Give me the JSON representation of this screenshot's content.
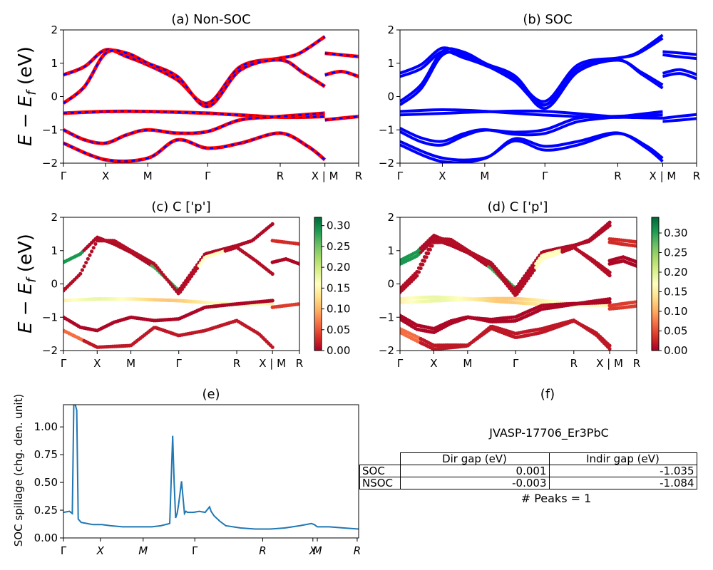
{
  "chart_data": [
    {
      "type": "line",
      "title": "(a) Non-SOC",
      "ylabel": "E − E_f (eV)",
      "ylim": [
        -2,
        2
      ],
      "yticks": [
        "2",
        "1",
        "0",
        "−1",
        "−2"
      ],
      "xtick_labels": [
        "Γ",
        "X",
        "M",
        "Γ",
        "R",
        "X | M",
        "R"
      ],
      "kpath": [
        0,
        0.5,
        1.0,
        1.71,
        2.57,
        3.1,
        3.5
      ],
      "legend": "none",
      "series": [
        {
          "color": "#ff0000",
          "style": "solid",
          "bands": [
            [
              [
                0,
                0.65
              ],
              [
                0.25,
                0.9
              ],
              [
                0.5,
                1.4
              ],
              [
                0.75,
                1.2
              ],
              [
                1.0,
                0.95
              ],
              [
                1.35,
                0.5
              ],
              [
                1.71,
                -0.2
              ],
              [
                2.1,
                0.9
              ],
              [
                2.57,
                1.15
              ],
              [
                2.8,
                1.3
              ],
              [
                3.1,
                1.8
              ]
            ],
            [
              [
                0,
                -0.2
              ],
              [
                0.25,
                0.3
              ],
              [
                0.5,
                1.3
              ],
              [
                0.75,
                1.3
              ],
              [
                1.0,
                1.0
              ],
              [
                1.35,
                0.6
              ],
              [
                1.71,
                -0.3
              ],
              [
                2.1,
                0.8
              ],
              [
                2.57,
                1.1
              ],
              [
                2.85,
                0.7
              ],
              [
                3.1,
                0.3
              ]
            ],
            [
              [
                0,
                -0.5
              ],
              [
                0.5,
                -0.45
              ],
              [
                1.0,
                -0.45
              ],
              [
                1.71,
                -0.5
              ],
              [
                2.57,
                -0.62
              ],
              [
                3.1,
                -0.6
              ]
            ],
            [
              [
                0,
                -1.0
              ],
              [
                0.25,
                -1.3
              ],
              [
                0.5,
                -1.4
              ],
              [
                0.75,
                -1.15
              ],
              [
                1.0,
                -1.0
              ],
              [
                1.35,
                -1.1
              ],
              [
                1.71,
                -1.05
              ],
              [
                2.1,
                -0.7
              ],
              [
                2.57,
                -0.6
              ],
              [
                3.1,
                -0.5
              ]
            ],
            [
              [
                0,
                -1.4
              ],
              [
                0.5,
                -1.9
              ],
              [
                1.0,
                -1.85
              ],
              [
                1.35,
                -1.3
              ],
              [
                1.71,
                -1.55
              ],
              [
                2.1,
                -1.4
              ],
              [
                2.57,
                -1.1
              ],
              [
                2.9,
                -1.5
              ],
              [
                3.1,
                -1.9
              ]
            ],
            [
              [
                3.1,
                0.65
              ],
              [
                3.3,
                0.75
              ],
              [
                3.5,
                0.6
              ]
            ],
            [
              [
                3.1,
                1.3
              ],
              [
                3.3,
                1.25
              ],
              [
                3.5,
                1.2
              ]
            ],
            [
              [
                3.1,
                -0.7
              ],
              [
                3.3,
                -0.65
              ],
              [
                3.5,
                -0.6
              ]
            ]
          ]
        },
        {
          "color": "#0000ff",
          "style": "dashed",
          "ref": "same bands"
        }
      ]
    },
    {
      "type": "line",
      "title": "(b) SOC",
      "ylim": [
        -2,
        2
      ],
      "yticks": [
        "2",
        "1",
        "0",
        "−1",
        "−2"
      ],
      "xtick_labels": [
        "Γ",
        "X",
        "M",
        "Γ",
        "R",
        "X | M",
        "R"
      ],
      "kpath": [
        0,
        0.5,
        1.0,
        1.71,
        2.57,
        3.1,
        3.5
      ],
      "series": [
        {
          "color": "#0000ff",
          "style": "solid",
          "ref": "bands split by spin-orbit coupling"
        }
      ]
    },
    {
      "type": "scatter",
      "title": "(c)  C ['p']",
      "ylabel": "E − E_f (eV)",
      "ylim": [
        -2,
        2
      ],
      "yticks": [
        "2",
        "1",
        "0",
        "−1",
        "−2"
      ],
      "xtick_labels": [
        "Γ",
        "X",
        "M",
        "Γ",
        "R",
        "X | M",
        "R"
      ],
      "kpath": [
        0,
        0.5,
        1.0,
        1.71,
        2.57,
        3.1,
        3.5
      ],
      "colormap": "RdYlGn",
      "colorbar_ticks": [
        "0.30",
        "0.25",
        "0.20",
        "0.15",
        "0.10",
        "0.05",
        "0.00"
      ],
      "clim": [
        0,
        0.32
      ]
    },
    {
      "type": "scatter",
      "title": "(d) C ['p']",
      "ylim": [
        -2,
        2
      ],
      "yticks": [
        "2",
        "1",
        "0",
        "−1",
        "−2"
      ],
      "xtick_labels": [
        "Γ",
        "X",
        "M",
        "Γ",
        "R",
        "X | M",
        "R"
      ],
      "kpath": [
        0,
        0.5,
        1.0,
        1.71,
        2.57,
        3.1,
        3.5
      ],
      "colormap": "RdYlGn",
      "colorbar_ticks": [
        "0.30",
        "0.25",
        "0.20",
        "0.15",
        "0.10",
        "0.05",
        "0.00"
      ],
      "clim": [
        0,
        0.34
      ]
    },
    {
      "type": "line",
      "title": "(e)",
      "ylabel": "SOC spillage (chg. den. unit)",
      "ylim": [
        0,
        1.2
      ],
      "yticks": [
        "1.00",
        "0.75",
        "0.50",
        "0.25",
        "0.00"
      ],
      "xtick_labels": [
        "Γ",
        "X",
        "M",
        "Γ",
        "R",
        "X",
        "M",
        "R"
      ],
      "xticks": [
        0,
        0.125,
        0.27,
        0.445,
        0.675,
        0.845,
        0.86,
        0.995
      ],
      "series": [
        {
          "color": "#1f77b4",
          "x": [
            0,
            0.02,
            0.03,
            0.035,
            0.04,
            0.045,
            0.05,
            0.06,
            0.08,
            0.1,
            0.13,
            0.16,
            0.2,
            0.25,
            0.3,
            0.33,
            0.36,
            0.37,
            0.375,
            0.38,
            0.385,
            0.39,
            0.4,
            0.41,
            0.415,
            0.42,
            0.44,
            0.46,
            0.48,
            0.495,
            0.5,
            0.51,
            0.53,
            0.55,
            0.6,
            0.65,
            0.7,
            0.75,
            0.8,
            0.84,
            0.85,
            0.86,
            0.9,
            0.95,
            1.0
          ],
          "y": [
            0.23,
            0.24,
            0.22,
            1.2,
            1.2,
            1.15,
            0.17,
            0.14,
            0.13,
            0.12,
            0.12,
            0.11,
            0.1,
            0.1,
            0.1,
            0.11,
            0.13,
            0.92,
            0.5,
            0.18,
            0.22,
            0.3,
            0.51,
            0.22,
            0.24,
            0.23,
            0.23,
            0.24,
            0.23,
            0.28,
            0.24,
            0.2,
            0.15,
            0.11,
            0.09,
            0.08,
            0.08,
            0.09,
            0.11,
            0.13,
            0.12,
            0.1,
            0.1,
            0.09,
            0.08
          ]
        }
      ]
    }
  ],
  "panel_f": {
    "title": "(f)",
    "material": "JVASP-17706_Er3PbC",
    "table": {
      "headers": [
        "Dir gap (eV)",
        "Indir gap (eV)"
      ],
      "rows": [
        {
          "label": "SOC",
          "dir": "0.001",
          "indir": "-1.035"
        },
        {
          "label": "NSOC",
          "dir": "-0.003",
          "indir": "-1.084"
        }
      ]
    },
    "peaks": "# Peaks = 1"
  }
}
